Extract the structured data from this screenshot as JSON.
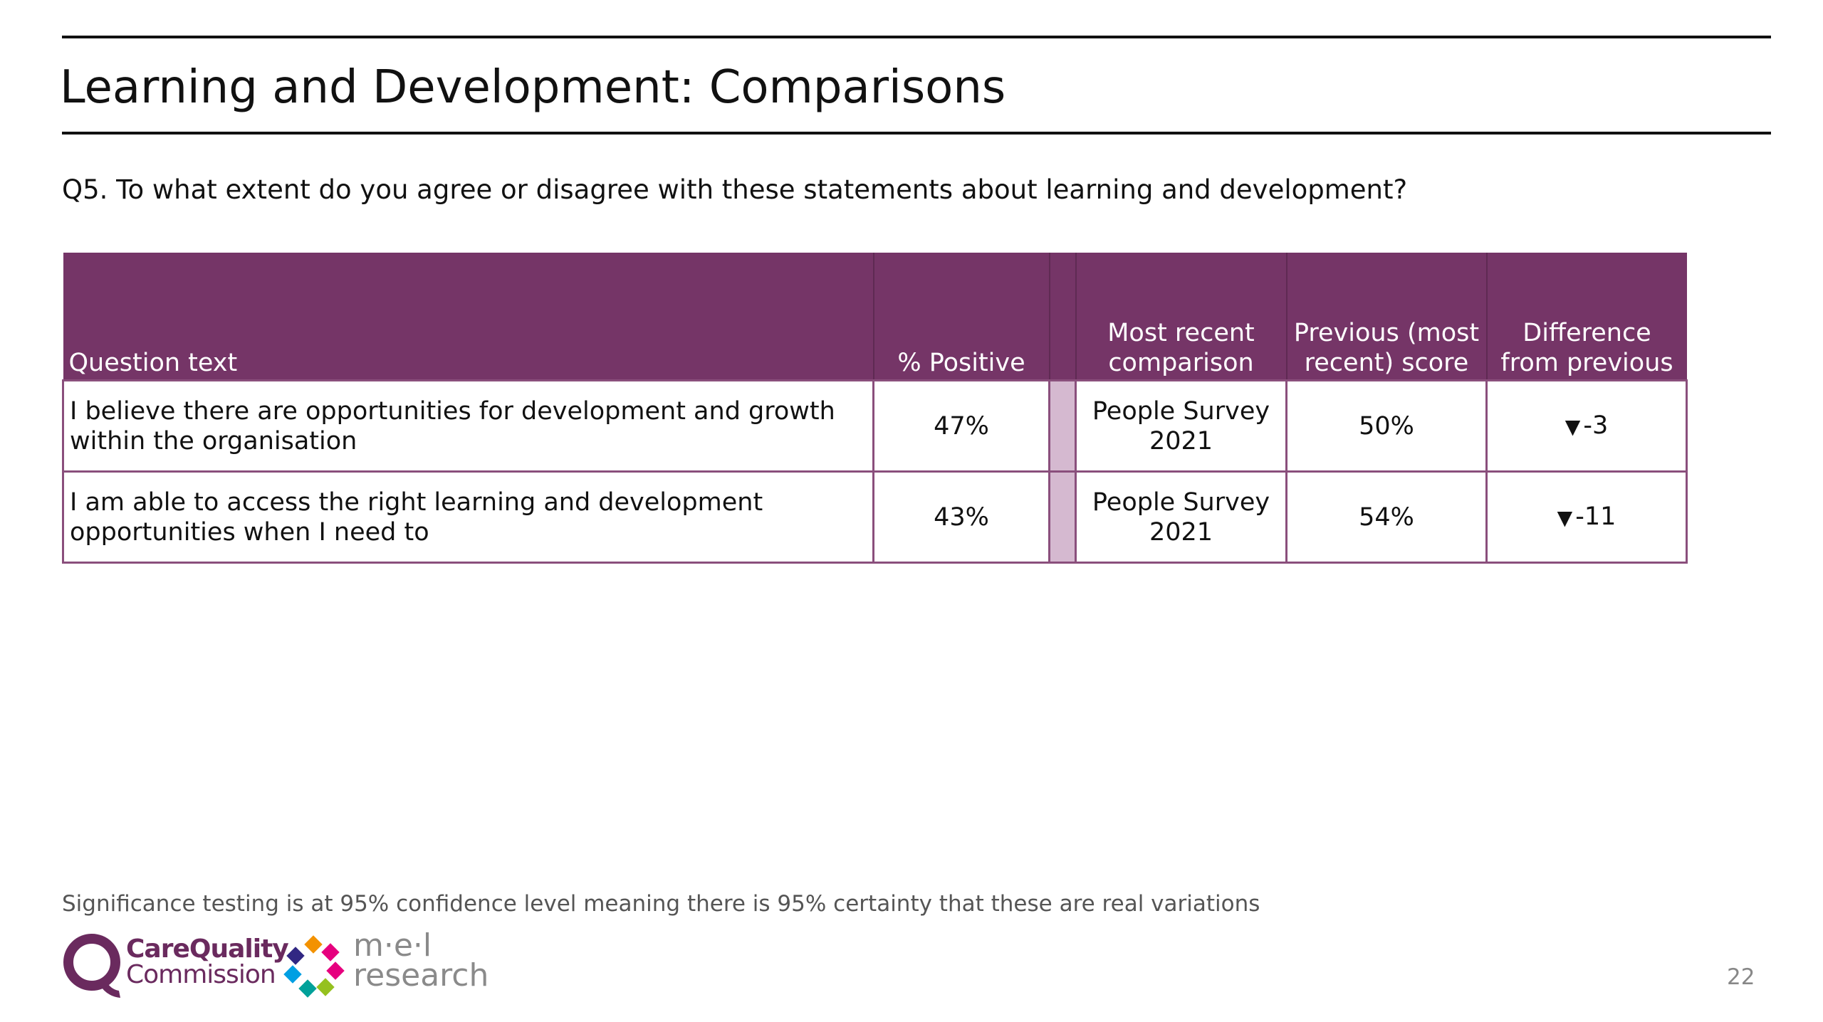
{
  "page": {
    "title": "Learning and Development: Comparisons",
    "question": "Q5. To what extent do you agree or disagree with these statements about learning and development?",
    "note": "Significance testing is at 95% confidence level meaning there is 95% certainty that these are real variations",
    "page_number": "22"
  },
  "table": {
    "headers": {
      "question_text": "Question text",
      "positive": "% Positive",
      "most_recent_comparison": "Most recent comparison",
      "previous_score": "Previous (most recent) score",
      "difference": "Difference from previous"
    },
    "rows": [
      {
        "question": "I believe there are opportunities for development and growth within the organisation",
        "positive": "47%",
        "comparison": "People Survey 2021",
        "previous": "50%",
        "arrow": "▼",
        "difference": "-3"
      },
      {
        "question": "I am able to access the right learning and development opportunities when I need to",
        "positive": "43%",
        "comparison": "People Survey 2021",
        "previous": "54%",
        "arrow": "▼",
        "difference": "-11"
      }
    ]
  },
  "logos": {
    "cqc_line1": "CareQuality",
    "cqc_line2": "Commission",
    "mel_line1": "m·e·l",
    "mel_line2": "research"
  },
  "colors": {
    "header_bg": "#753567",
    "bar_fill": "#d5b9d0",
    "cqc_purple": "#6a2a5e"
  }
}
